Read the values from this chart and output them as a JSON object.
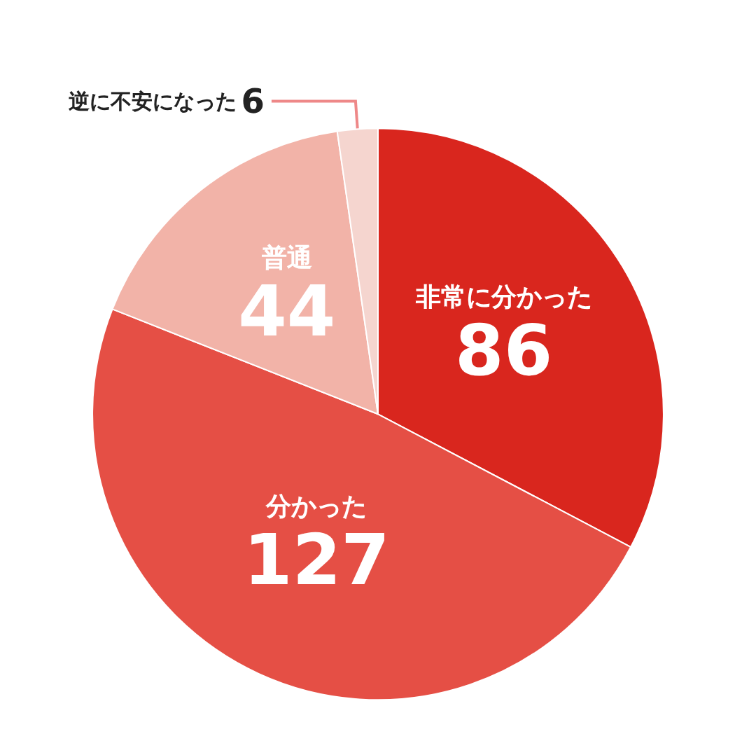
{
  "chart_data": {
    "type": "pie",
    "categories": [
      "非常に分かった",
      "分かった",
      "普通",
      "逆に不安になった"
    ],
    "values": [
      86,
      127,
      44,
      6
    ],
    "colors": [
      "#d9261e",
      "#e54f45",
      "#f2b3a8",
      "#f5d5cf"
    ],
    "data_labels": true,
    "legend": false
  }
}
